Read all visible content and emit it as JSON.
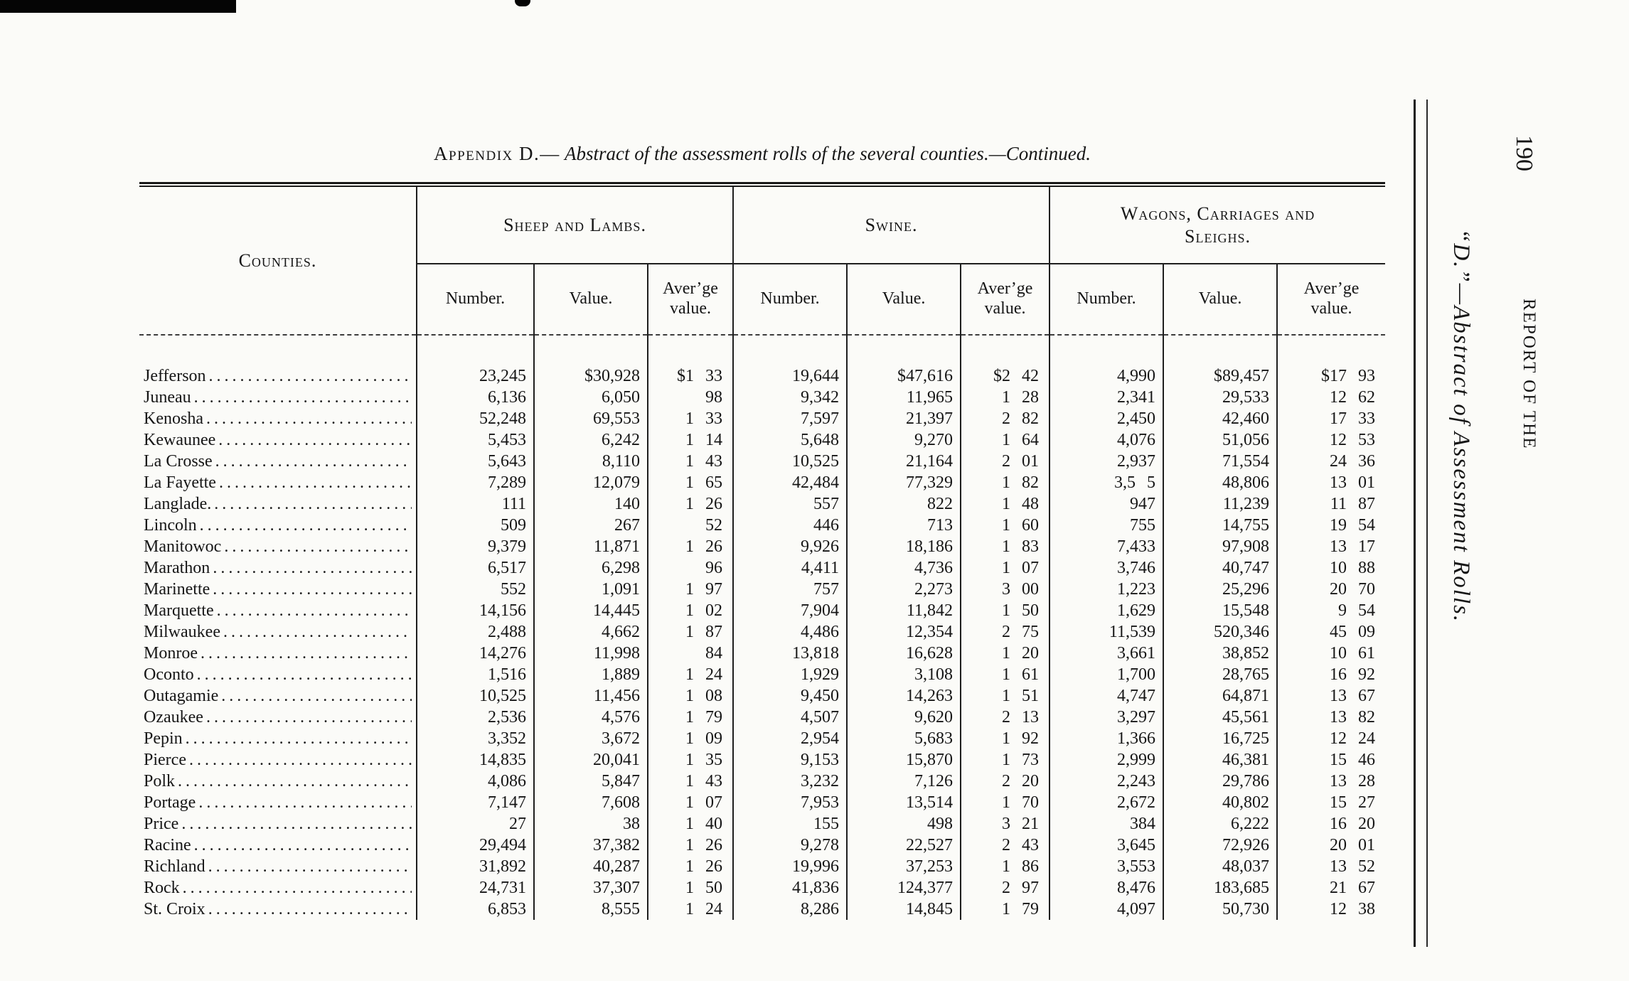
{
  "page": {
    "number": "190",
    "margin_caption_italic": "“D.”—Abstract of Assessment Rolls.",
    "margin_caption_caps": "REPORT OF THE"
  },
  "title": {
    "appendix": "Appendix D.—",
    "italic": " Abstract of the assessment rolls of the several counties.",
    "continued": "—Continued."
  },
  "table": {
    "counties_header": "Counties.",
    "group_headers": [
      "Sheep and Lambs.",
      "Swine.",
      "Wagons, Carriages and\nSleighs."
    ],
    "sub_headers": [
      "Number.",
      "Value.",
      "Aver’ge\nvalue."
    ],
    "rows": [
      {
        "county": "Jefferson",
        "cells": [
          "23,245",
          "$30,928",
          "$1 33",
          "19,644",
          "$47,616",
          "$2 42",
          "4,990",
          "$89,457",
          "$17 93"
        ]
      },
      {
        "county": "Juneau",
        "cells": [
          "6,136",
          "6,050",
          "98",
          "9,342",
          "11,965",
          "1 28",
          "2,341",
          "29,533",
          "12 62"
        ]
      },
      {
        "county": "Kenosha",
        "cells": [
          "52,248",
          "69,553",
          "1 33",
          "7,597",
          "21,397",
          "2 82",
          "2,450",
          "42,460",
          "17 33"
        ]
      },
      {
        "county": "Kewaunee",
        "cells": [
          "5,453",
          "6,242",
          "1 14",
          "5,648",
          "9,270",
          "1 64",
          "4,076",
          "51,056",
          "12 53"
        ]
      },
      {
        "county": "La Crosse",
        "cells": [
          "5,643",
          "8,110",
          "1 43",
          "10,525",
          "21,164",
          "2 01",
          "2,937",
          "71,554",
          "24 36"
        ]
      },
      {
        "county": "La Fayette",
        "cells": [
          "7,289",
          "12,079",
          "1 65",
          "42,484",
          "77,329",
          "1 82",
          "3,5 5",
          "48,806",
          "13 01"
        ]
      },
      {
        "county": "Langlade.",
        "cells": [
          "111",
          "140",
          "1 26",
          "557",
          "822",
          "1 48",
          "947",
          "11,239",
          "11 87"
        ]
      },
      {
        "county": "Lincoln",
        "cells": [
          "509",
          "267",
          "52",
          "446",
          "713",
          "1 60",
          "755",
          "14,755",
          "19 54"
        ]
      },
      {
        "county": "Manitowoc",
        "cells": [
          "9,379",
          "11,871",
          "1 26",
          "9,926",
          "18,186",
          "1 83",
          "7,433",
          "97,908",
          "13 17"
        ]
      },
      {
        "county": "Marathon",
        "cells": [
          "6,517",
          "6,298",
          "96",
          "4,411",
          "4,736",
          "1 07",
          "3,746",
          "40,747",
          "10 88"
        ]
      },
      {
        "county": "Marinette",
        "cells": [
          "552",
          "1,091",
          "1 97",
          "757",
          "2,273",
          "3 00",
          "1,223",
          "25,296",
          "20 70"
        ]
      },
      {
        "county": "Marquette",
        "cells": [
          "14,156",
          "14,445",
          "1 02",
          "7,904",
          "11,842",
          "1 50",
          "1,629",
          "15,548",
          "9 54"
        ]
      },
      {
        "county": "Milwaukee",
        "cells": [
          "2,488",
          "4,662",
          "1 87",
          "4,486",
          "12,354",
          "2 75",
          "11,539",
          "520,346",
          "45 09"
        ]
      },
      {
        "county": "Monroe",
        "cells": [
          "14,276",
          "11,998",
          "84",
          "13,818",
          "16,628",
          "1 20",
          "3,661",
          "38,852",
          "10 61"
        ]
      },
      {
        "county": "Oconto",
        "cells": [
          "1,516",
          "1,889",
          "1 24",
          "1,929",
          "3,108",
          "1 61",
          "1,700",
          "28,765",
          "16 92"
        ]
      },
      {
        "county": "Outagamie",
        "cells": [
          "10,525",
          "11,456",
          "1 08",
          "9,450",
          "14,263",
          "1 51",
          "4,747",
          "64,871",
          "13 67"
        ]
      },
      {
        "county": "Ozaukee",
        "cells": [
          "2,536",
          "4,576",
          "1 79",
          "4,507",
          "9,620",
          "2 13",
          "3,297",
          "45,561",
          "13 82"
        ]
      },
      {
        "county": "Pepin",
        "cells": [
          "3,352",
          "3,672",
          "1 09",
          "2,954",
          "5,683",
          "1 92",
          "1,366",
          "16,725",
          "12 24"
        ]
      },
      {
        "county": "Pierce",
        "cells": [
          "14,835",
          "20,041",
          "1 35",
          "9,153",
          "15,870",
          "1 73",
          "2,999",
          "46,381",
          "15 46"
        ]
      },
      {
        "county": "Polk",
        "cells": [
          "4,086",
          "5,847",
          "1 43",
          "3,232",
          "7,126",
          "2 20",
          "2,243",
          "29,786",
          "13 28"
        ]
      },
      {
        "county": "Portage",
        "cells": [
          "7,147",
          "7,608",
          "1 07",
          "7,953",
          "13,514",
          "1 70",
          "2,672",
          "40,802",
          "15 27"
        ]
      },
      {
        "county": "Price",
        "cells": [
          "27",
          "38",
          "1 40",
          "155",
          "498",
          "3 21",
          "384",
          "6,222",
          "16 20"
        ]
      },
      {
        "county": "Racine",
        "cells": [
          "29,494",
          "37,382",
          "1 26",
          "9,278",
          "22,527",
          "2 43",
          "3,645",
          "72,926",
          "20 01"
        ]
      },
      {
        "county": "Richland",
        "cells": [
          "31,892",
          "40,287",
          "1 26",
          "19,996",
          "37,253",
          "1 86",
          "3,553",
          "48,037",
          "13 52"
        ]
      },
      {
        "county": "Rock",
        "cells": [
          "24,731",
          "37,307",
          "1 50",
          "41,836",
          "124,377",
          "2 97",
          "8,476",
          "183,685",
          "21 67"
        ]
      },
      {
        "county": "St. Croix",
        "cells": [
          "6,853",
          "8,555",
          "1 24",
          "8,286",
          "14,845",
          "1 79",
          "4,097",
          "50,730",
          "12 38"
        ]
      }
    ]
  }
}
